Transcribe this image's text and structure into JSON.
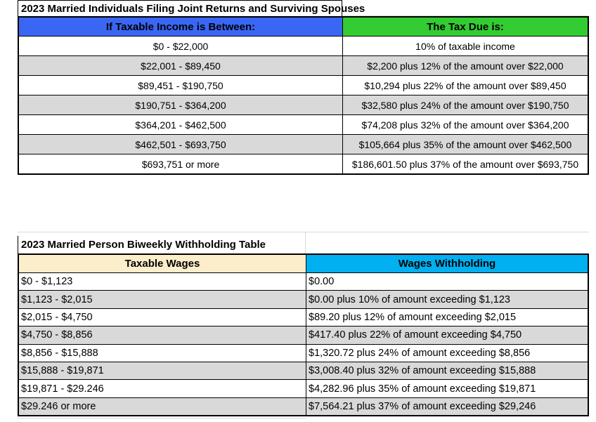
{
  "colors": {
    "header-blue": "#3a66f4",
    "header-green": "#33cc33",
    "header-tan": "#fceecb",
    "header-cyan": "#00b0f0",
    "row-shade": "#d9d9d9",
    "border-black": "#000000",
    "gridline-gray": "#d9d9d9"
  },
  "tables": [
    {
      "title": "2023 Married Individuals Filing Joint Returns and Surviving Spouses",
      "headers": [
        {
          "label": "If Taxable Income is Between:",
          "color": "header-blue"
        },
        {
          "label": "The Tax Due is:",
          "color": "header-green"
        }
      ],
      "rows": [
        [
          "$0 - $22,000",
          "10% of taxable income"
        ],
        [
          "$22,001 - $89,450",
          "$2,200 plus 12% of the amount over $22,000"
        ],
        [
          "$89,451 - $190,750",
          "$10,294 plus 22% of the amount over $89,450"
        ],
        [
          "$190,751 - $364,200",
          "$32,580 plus 24% of the amount over $190,750"
        ],
        [
          "$364,201 - $462,500",
          "$74,208 plus 32% of the amount over $364,200"
        ],
        [
          "$462,501 - $693,750",
          "$105,664 plus 35% of the amount over $462,500"
        ],
        [
          "$693,751 or more",
          "$186,601.50 plus 37% of the amount over $693,750"
        ]
      ]
    },
    {
      "title": "2023 Married Person Biweekly Withholding Table",
      "headers": [
        {
          "label": "Taxable Wages",
          "color": "header-tan"
        },
        {
          "label": "Wages Withholding",
          "color": "header-cyan"
        }
      ],
      "rows": [
        [
          "$0 - $1,123",
          "$0.00"
        ],
        [
          "$1,123 - $2,015",
          "$0.00 plus 10% of amount exceeding $1,123"
        ],
        [
          "$2,015 - $4,750",
          "$89.20 plus 12% of amount exceeding $2,015"
        ],
        [
          "$4,750 - $8,856",
          "$417.40 plus 22% of amount exceeding $4,750"
        ],
        [
          "$8,856 - $15,888",
          "$1,320.72 plus 24% of amount exceeding $8,856"
        ],
        [
          "$15,888 - $19,871",
          "$3,008.40 plus 32% of amount exceeding $15,888"
        ],
        [
          "$19,871 - $29.246",
          "$4,282.96 plus 35% of amount exceeding $19,871"
        ],
        [
          "$29.246 or more",
          "$7,564.21 plus 37% of amount exceeding $29,246"
        ]
      ]
    }
  ]
}
